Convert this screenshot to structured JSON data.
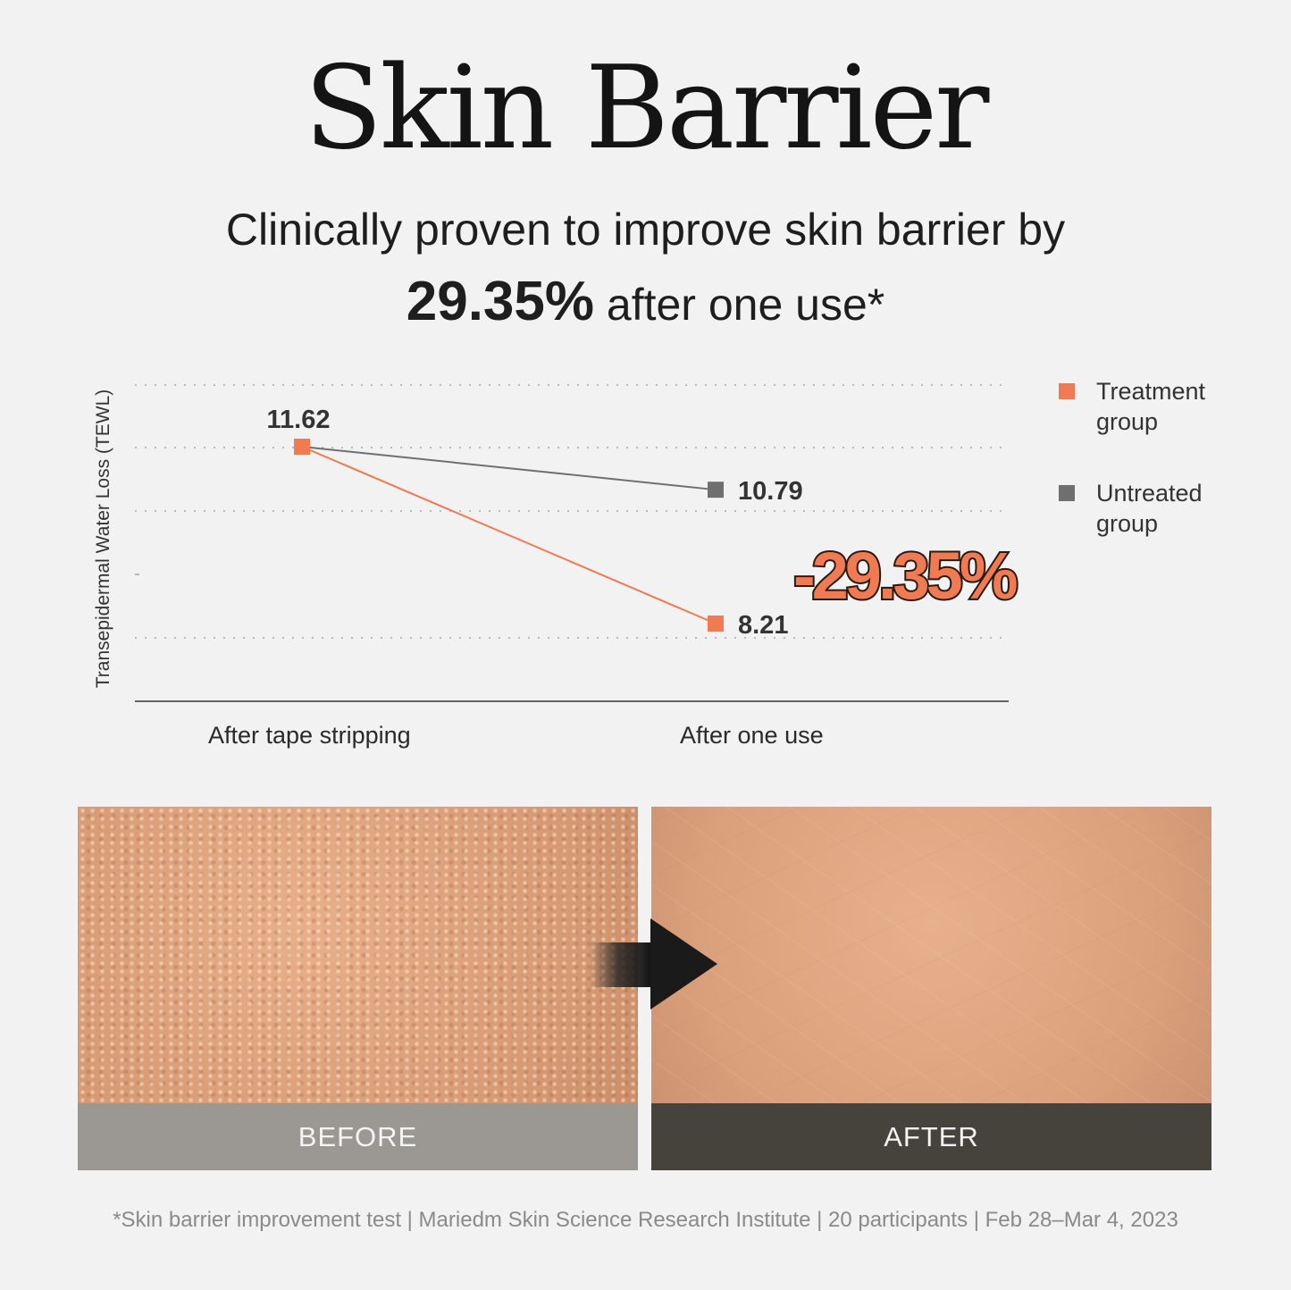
{
  "title": "Skin Barrier",
  "subtitle_line1": "Clinically proven to improve skin barrier by",
  "subtitle_highlight": "29.35%",
  "subtitle_rest": " after one use*",
  "highlight_badge": "-29.35%",
  "chart_data": {
    "type": "line",
    "ylabel": "Transepidermal Water Loss (TEWL)",
    "xlabel": "",
    "categories": [
      "After tape stripping",
      "After one use"
    ],
    "grid": true,
    "legend": "right",
    "series": [
      {
        "name": "Treatment group",
        "values": [
          11.62,
          8.21
        ],
        "color": "#f07a52",
        "labels": [
          "11.62",
          "8.21"
        ]
      },
      {
        "name": "Untreated group",
        "values": [
          11.62,
          10.79
        ],
        "color": "#6f6f6f",
        "labels": [
          "",
          "10.79"
        ]
      }
    ]
  },
  "legend": [
    {
      "line1": "Treatment",
      "line2": "group",
      "color": "#f07a52"
    },
    {
      "line1": "Untreated",
      "line2": "group",
      "color": "#6f6f6f"
    }
  ],
  "photos": {
    "before_label": "BEFORE",
    "after_label": "AFTER",
    "before_color": "#9b9893",
    "after_color": "#46433d"
  },
  "footnote": "*Skin barrier improvement test | Mariedm Skin Science Research Institute | 20 participants | Feb 28–Mar 4, 2023"
}
